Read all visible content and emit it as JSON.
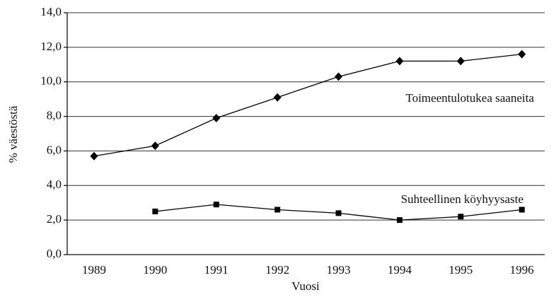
{
  "chart_data": {
    "type": "line",
    "x_label": "Vuosi",
    "y_label": "% väestöstä",
    "categories": [
      "1989",
      "1990",
      "1991",
      "1992",
      "1993",
      "1994",
      "1995",
      "1996"
    ],
    "series": [
      {
        "name": "Toimeentulotukea saaneita",
        "color": "#000000",
        "marker": "diamond",
        "values": [
          5.7,
          6.3,
          7.9,
          9.1,
          10.3,
          11.2,
          11.2,
          11.6
        ]
      },
      {
        "name": "Suhteellinen köyhyysaste",
        "color": "#000000",
        "marker": "square",
        "values": [
          null,
          2.5,
          2.9,
          2.6,
          2.4,
          2.0,
          2.2,
          2.6
        ]
      }
    ],
    "ylim": [
      0,
      14
    ],
    "yticks": [
      {
        "value": 0,
        "label": "0,0"
      },
      {
        "value": 2,
        "label": "2,0"
      },
      {
        "value": 4,
        "label": "4,0"
      },
      {
        "value": 6,
        "label": "6,0"
      },
      {
        "value": 8,
        "label": "8,0"
      },
      {
        "value": 10,
        "label": "10,0"
      },
      {
        "value": 12,
        "label": "12,0"
      },
      {
        "value": 14,
        "label": "14,0"
      }
    ],
    "grid": true
  }
}
